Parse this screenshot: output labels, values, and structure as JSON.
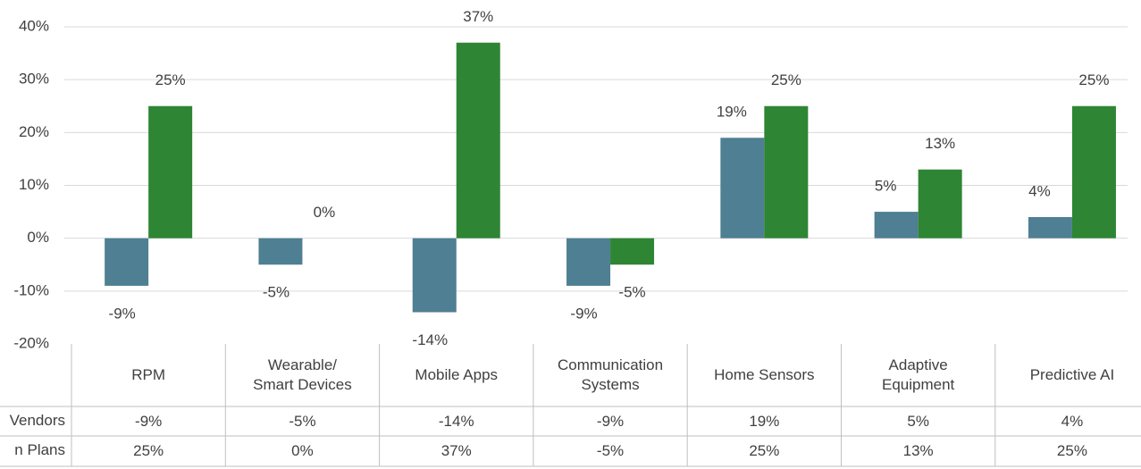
{
  "chart_data": {
    "type": "bar",
    "categories": [
      "RPM",
      "Wearable/\nSmart Devices",
      "Mobile Apps",
      "Communication\nSystems",
      "Home Sensors",
      "Adaptive\nEquipment",
      "Predictive AI"
    ],
    "series": [
      {
        "name": "Vendors",
        "color": "#4e7f93",
        "values": [
          -9,
          -5,
          -14,
          -9,
          19,
          5,
          4
        ],
        "value_labels": [
          "-9%",
          "-5%",
          "-14%",
          "-9%",
          "19%",
          "5%",
          "4%"
        ]
      },
      {
        "name": "n Plans",
        "color": "#2e8534",
        "values": [
          25,
          0,
          37,
          -5,
          25,
          13,
          25
        ],
        "value_labels": [
          "25%",
          "0%",
          "37%",
          "-5%",
          "25%",
          "13%",
          "25%"
        ]
      }
    ],
    "ylim": [
      -20,
      40
    ],
    "yticks": [
      {
        "value": -20,
        "label": "-20%"
      },
      {
        "value": -10,
        "label": "-10%"
      },
      {
        "value": 0,
        "label": "0%"
      },
      {
        "value": 10,
        "label": "10%"
      },
      {
        "value": 20,
        "label": "20%"
      },
      {
        "value": 30,
        "label": "30%"
      },
      {
        "value": 40,
        "label": "40%"
      }
    ],
    "grid": true
  }
}
